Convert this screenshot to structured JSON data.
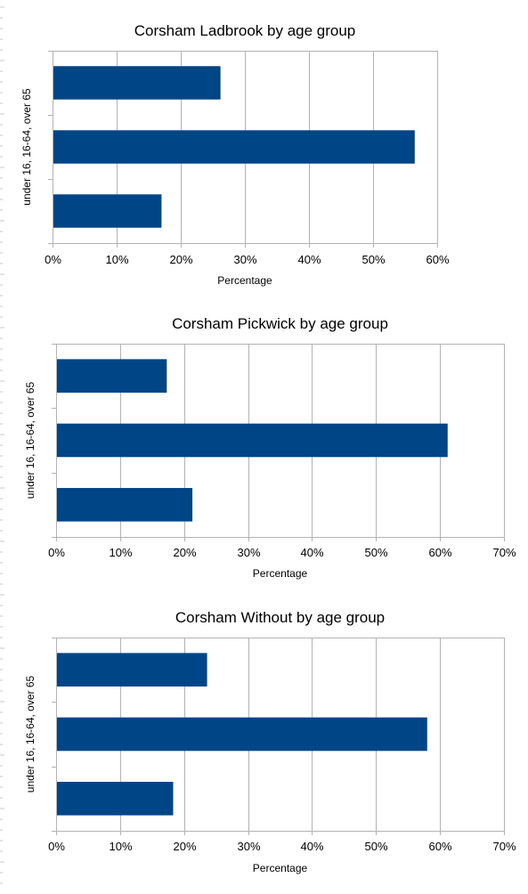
{
  "colors": {
    "bar": "#004586",
    "grid": "#b3b3b3"
  },
  "chart_data": [
    {
      "type": "bar",
      "orientation": "horizontal",
      "title": "Corsham Ladbrook by age group",
      "xlabel": "Percentage",
      "ylabel": "under 16, 16-64, over 65",
      "xlim": [
        0,
        60
      ],
      "xticks": [
        "0%",
        "10%",
        "20%",
        "30%",
        "40%",
        "50%",
        "60%"
      ],
      "categories": [
        "under 16",
        "16-64",
        "over 65"
      ],
      "values": [
        17,
        56.5,
        26.2
      ],
      "grid": true,
      "legend": "none"
    },
    {
      "type": "bar",
      "orientation": "horizontal",
      "title": "Corsham Pickwick by age group",
      "xlabel": "Percentage",
      "ylabel": "under 16, 16-64, over 65",
      "xlim": [
        0,
        70
      ],
      "xticks": [
        "0%",
        "10%",
        "20%",
        "30%",
        "40%",
        "50%",
        "60%",
        "70%"
      ],
      "categories": [
        "under 16",
        "16-64",
        "over 65"
      ],
      "values": [
        21.3,
        61.2,
        17.3
      ],
      "grid": true,
      "legend": "none"
    },
    {
      "type": "bar",
      "orientation": "horizontal",
      "title": "Corsham Without by age group",
      "xlabel": "Percentage",
      "ylabel": "under 16, 16-64, over 65",
      "xlim": [
        0,
        70
      ],
      "xticks": [
        "0%",
        "10%",
        "20%",
        "30%",
        "40%",
        "50%",
        "60%",
        "70%"
      ],
      "categories": [
        "under 16",
        "16-64",
        "over 65"
      ],
      "values": [
        18.3,
        58,
        23.6
      ],
      "grid": true,
      "legend": "none"
    }
  ]
}
